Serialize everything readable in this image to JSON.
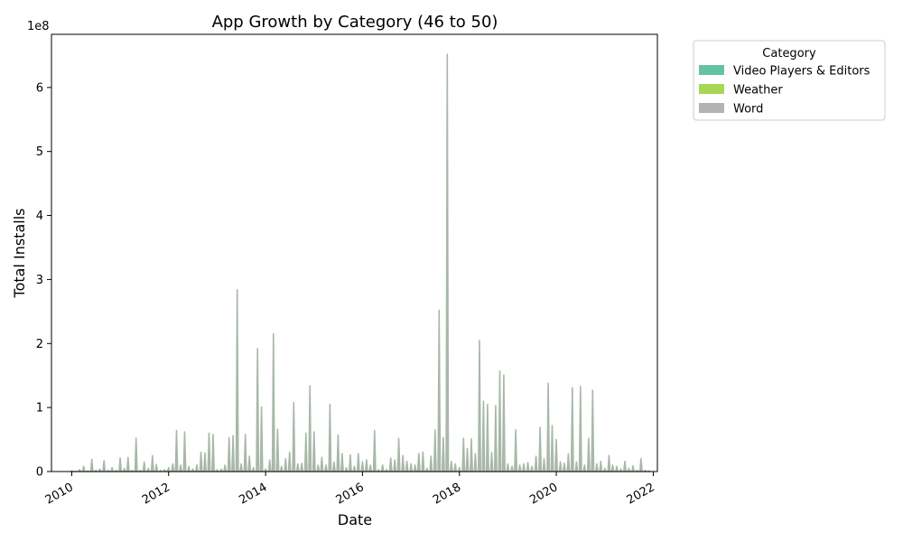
{
  "chart_data": {
    "type": "area",
    "title": "App Growth by Category (46 to 50)",
    "xlabel": "Date",
    "ylabel": "Total Installs",
    "y_offset_label": "1e8",
    "y_scale_note": "values in units of 1e8 installs",
    "xlim": [
      "2009-08-01",
      "2022-02-01"
    ],
    "ylim": [
      0,
      6.83
    ],
    "x_ticks": [
      "2010",
      "2012",
      "2014",
      "2016",
      "2018",
      "2020",
      "2022"
    ],
    "y_ticks": [
      "0",
      "1",
      "2",
      "3",
      "4",
      "5",
      "6"
    ],
    "grid": false,
    "legend": {
      "title": "Category",
      "placement": "outside-top-right",
      "entries": [
        {
          "label": "Video Players & Editors",
          "color": "#66c2a5"
        },
        {
          "label": "Weather",
          "color": "#a6d854"
        },
        {
          "label": "Word",
          "color": "#b3b3b3"
        }
      ]
    },
    "series": [
      {
        "name": "Word",
        "color": "#b3b3b3",
        "points": [
          [
            "2010-01-01",
            0.01
          ],
          [
            "2010-03-01",
            0.03
          ],
          [
            "2010-04-01",
            0.08
          ],
          [
            "2010-05-01",
            0.01
          ],
          [
            "2010-06-01",
            0.19
          ],
          [
            "2010-07-01",
            0.02
          ],
          [
            "2010-08-01",
            0.04
          ],
          [
            "2010-09-01",
            0.17
          ],
          [
            "2010-10-01",
            0.02
          ],
          [
            "2010-11-01",
            0.06
          ],
          [
            "2010-12-01",
            0.02
          ],
          [
            "2011-01-01",
            0.21
          ],
          [
            "2011-02-01",
            0.05
          ],
          [
            "2011-03-01",
            0.22
          ],
          [
            "2011-04-01",
            0.02
          ],
          [
            "2011-05-01",
            0.52
          ],
          [
            "2011-06-01",
            0.02
          ],
          [
            "2011-07-01",
            0.15
          ],
          [
            "2011-08-01",
            0.05
          ],
          [
            "2011-09-01",
            0.25
          ],
          [
            "2011-10-01",
            0.11
          ],
          [
            "2011-11-01",
            0.02
          ],
          [
            "2011-12-01",
            0.03
          ],
          [
            "2012-01-01",
            0.06
          ],
          [
            "2012-02-01",
            0.12
          ],
          [
            "2012-03-01",
            0.64
          ],
          [
            "2012-04-01",
            0.1
          ],
          [
            "2012-05-01",
            0.62
          ],
          [
            "2012-06-01",
            0.08
          ],
          [
            "2012-07-01",
            0.04
          ],
          [
            "2012-08-01",
            0.1
          ],
          [
            "2012-09-01",
            0.3
          ],
          [
            "2012-10-01",
            0.29
          ],
          [
            "2012-11-01",
            0.6
          ],
          [
            "2012-12-01",
            0.58
          ],
          [
            "2013-01-01",
            0.03
          ],
          [
            "2013-02-01",
            0.04
          ],
          [
            "2013-03-01",
            0.1
          ],
          [
            "2013-04-01",
            0.53
          ],
          [
            "2013-05-01",
            0.56
          ],
          [
            "2013-06-01",
            2.84
          ],
          [
            "2013-07-01",
            0.12
          ],
          [
            "2013-08-01",
            0.58
          ],
          [
            "2013-09-01",
            0.24
          ],
          [
            "2013-10-01",
            0.06
          ],
          [
            "2013-11-01",
            1.92
          ],
          [
            "2013-12-01",
            1.01
          ],
          [
            "2014-01-01",
            0.04
          ],
          [
            "2014-02-01",
            0.18
          ],
          [
            "2014-03-01",
            2.15
          ],
          [
            "2014-04-01",
            0.66
          ],
          [
            "2014-05-01",
            0.08
          ],
          [
            "2014-06-01",
            0.2
          ],
          [
            "2014-07-01",
            0.3
          ],
          [
            "2014-08-01",
            1.08
          ],
          [
            "2014-09-01",
            0.12
          ],
          [
            "2014-10-01",
            0.13
          ],
          [
            "2014-11-01",
            0.6
          ],
          [
            "2014-12-01",
            1.34
          ],
          [
            "2015-01-01",
            0.62
          ],
          [
            "2015-02-01",
            0.1
          ],
          [
            "2015-03-01",
            0.22
          ],
          [
            "2015-04-01",
            0.1
          ],
          [
            "2015-05-01",
            1.05
          ],
          [
            "2015-06-01",
            0.15
          ],
          [
            "2015-07-01",
            0.57
          ],
          [
            "2015-08-01",
            0.28
          ],
          [
            "2015-09-01",
            0.06
          ],
          [
            "2015-10-01",
            0.26
          ],
          [
            "2015-11-01",
            0.08
          ],
          [
            "2015-12-01",
            0.28
          ],
          [
            "2016-01-01",
            0.15
          ],
          [
            "2016-02-01",
            0.18
          ],
          [
            "2016-03-01",
            0.1
          ],
          [
            "2016-04-01",
            0.64
          ],
          [
            "2016-05-01",
            0.03
          ],
          [
            "2016-06-01",
            0.1
          ],
          [
            "2016-07-01",
            0.03
          ],
          [
            "2016-08-01",
            0.21
          ],
          [
            "2016-09-01",
            0.18
          ],
          [
            "2016-10-01",
            0.52
          ],
          [
            "2016-11-01",
            0.25
          ],
          [
            "2016-12-01",
            0.16
          ],
          [
            "2017-01-01",
            0.12
          ],
          [
            "2017-02-01",
            0.1
          ],
          [
            "2017-03-01",
            0.28
          ],
          [
            "2017-04-01",
            0.3
          ],
          [
            "2017-05-01",
            0.05
          ],
          [
            "2017-06-01",
            0.24
          ],
          [
            "2017-07-01",
            0.65
          ],
          [
            "2017-08-01",
            2.52
          ],
          [
            "2017-09-01",
            0.53
          ],
          [
            "2017-10-01",
            6.52
          ],
          [
            "2017-11-01",
            0.16
          ],
          [
            "2017-12-01",
            0.12
          ],
          [
            "2018-01-01",
            0.06
          ],
          [
            "2018-02-01",
            0.52
          ],
          [
            "2018-03-01",
            0.36
          ],
          [
            "2018-04-01",
            0.51
          ],
          [
            "2018-05-01",
            0.28
          ],
          [
            "2018-06-01",
            2.05
          ],
          [
            "2018-07-01",
            1.1
          ],
          [
            "2018-08-01",
            1.05
          ],
          [
            "2018-09-01",
            0.3
          ],
          [
            "2018-10-01",
            1.03
          ],
          [
            "2018-11-01",
            1.57
          ],
          [
            "2018-12-01",
            1.51
          ],
          [
            "2019-01-01",
            0.12
          ],
          [
            "2019-02-01",
            0.08
          ],
          [
            "2019-03-01",
            0.65
          ],
          [
            "2019-04-01",
            0.1
          ],
          [
            "2019-05-01",
            0.12
          ],
          [
            "2019-06-01",
            0.14
          ],
          [
            "2019-07-01",
            0.08
          ],
          [
            "2019-08-01",
            0.24
          ],
          [
            "2019-09-01",
            0.69
          ],
          [
            "2019-10-01",
            0.2
          ],
          [
            "2019-11-01",
            1.38
          ],
          [
            "2019-12-01",
            0.72
          ],
          [
            "2020-01-01",
            0.5
          ],
          [
            "2020-02-01",
            0.15
          ],
          [
            "2020-03-01",
            0.13
          ],
          [
            "2020-04-01",
            0.28
          ],
          [
            "2020-05-01",
            1.31
          ],
          [
            "2020-06-01",
            0.15
          ],
          [
            "2020-07-01",
            1.33
          ],
          [
            "2020-08-01",
            0.1
          ],
          [
            "2020-09-01",
            0.52
          ],
          [
            "2020-10-01",
            1.27
          ],
          [
            "2020-11-01",
            0.12
          ],
          [
            "2020-12-01",
            0.16
          ],
          [
            "2021-01-01",
            0.05
          ],
          [
            "2021-02-01",
            0.25
          ],
          [
            "2021-03-01",
            0.1
          ],
          [
            "2021-04-01",
            0.08
          ],
          [
            "2021-05-01",
            0.04
          ],
          [
            "2021-06-01",
            0.16
          ],
          [
            "2021-07-01",
            0.05
          ],
          [
            "2021-08-01",
            0.09
          ],
          [
            "2021-09-01",
            0.02
          ],
          [
            "2021-10-01",
            0.2
          ],
          [
            "2021-11-01",
            0.02
          ],
          [
            "2021-12-01",
            0.01
          ]
        ]
      }
    ]
  }
}
